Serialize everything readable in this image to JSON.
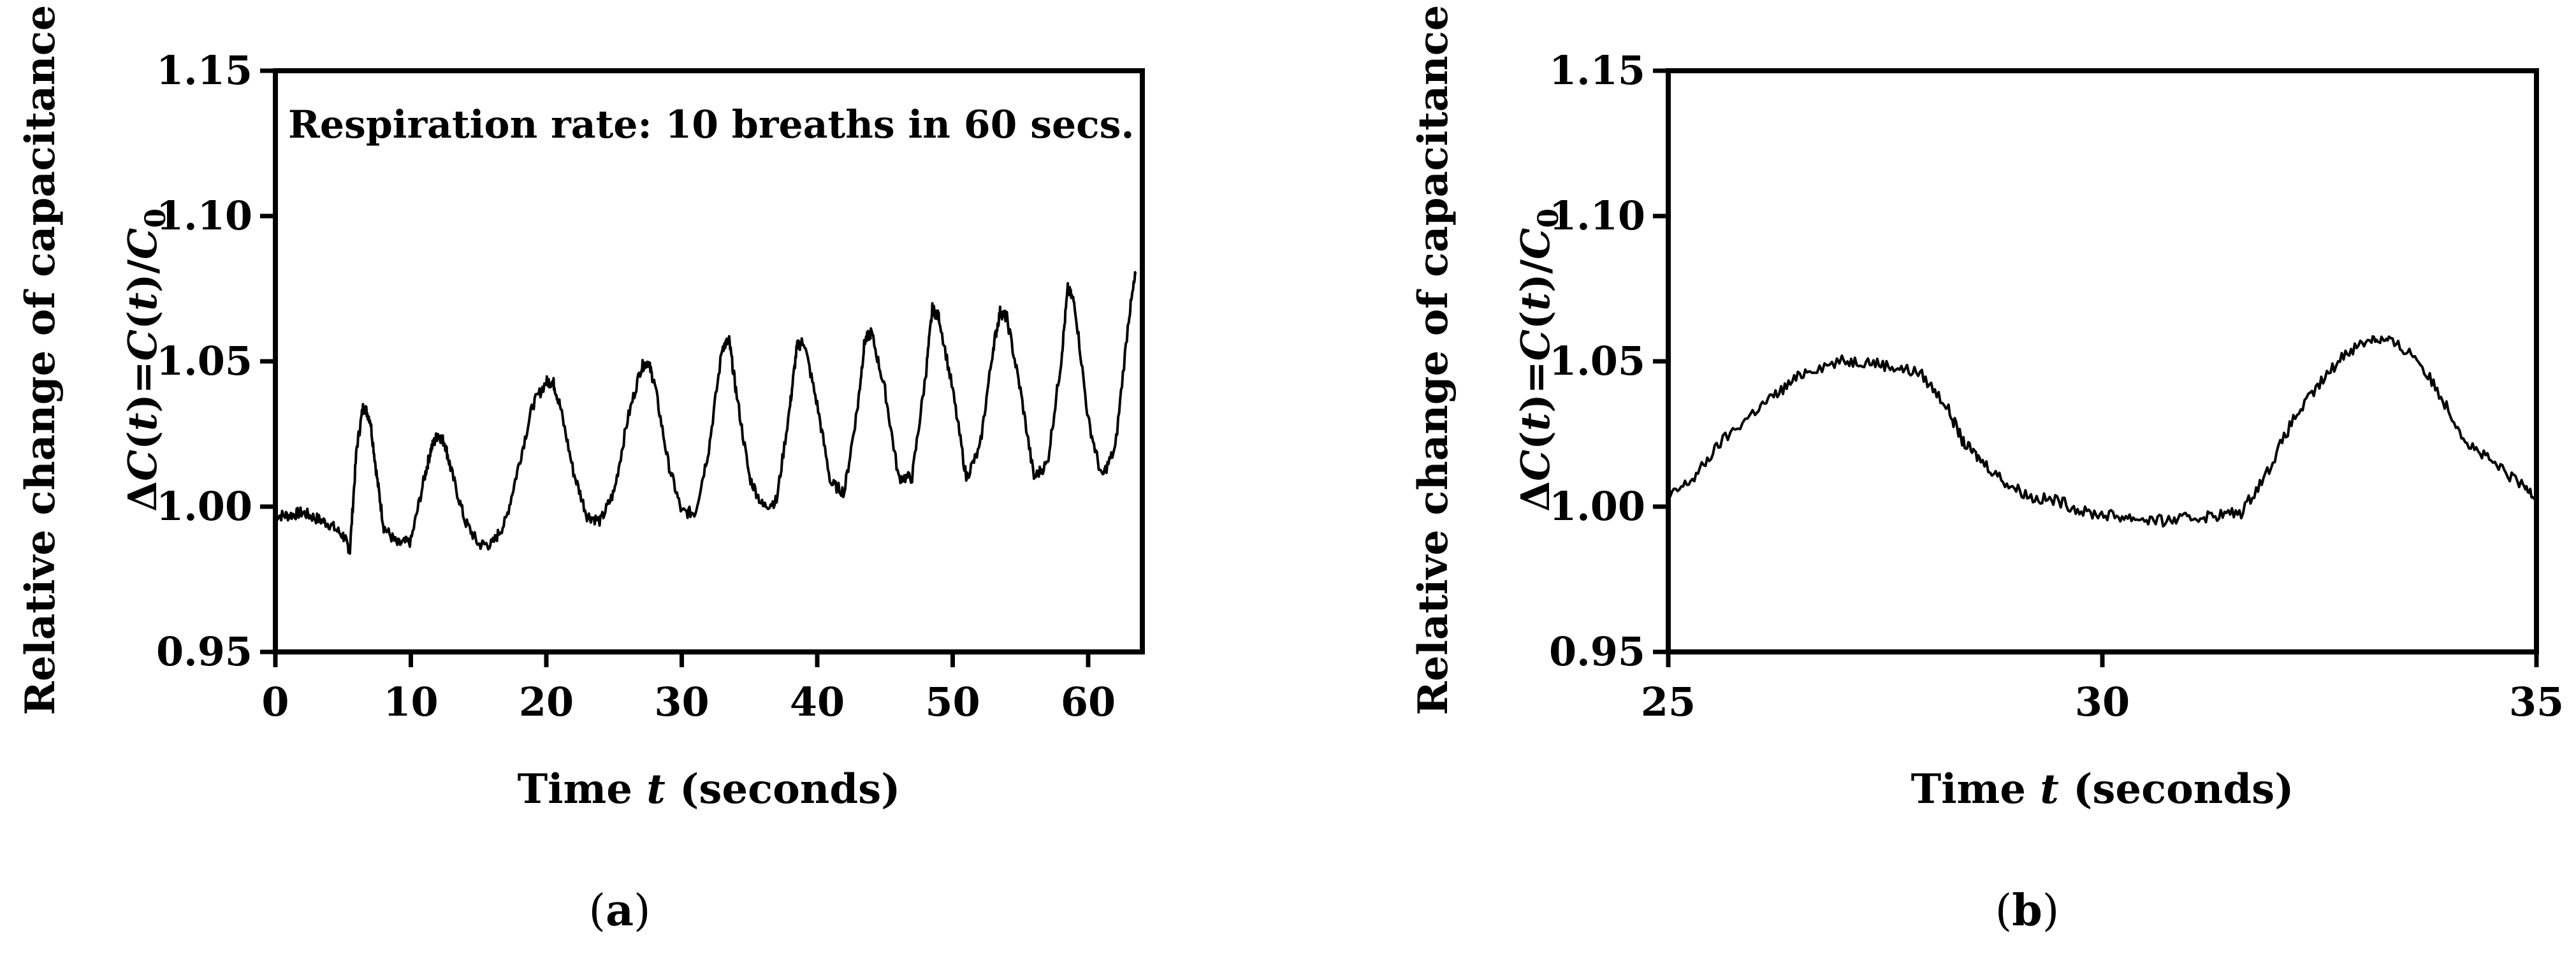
{
  "chart_data": [
    {
      "type": "line",
      "panel_label": "(a)",
      "panel_letter": "a",
      "annotation": "Respiration rate: 10 breaths in 60 secs.",
      "ylabel_line1": "Relative change of capacitance",
      "ylabel_line2": "ΔC(t)=C(t)/C0",
      "xlabel": "Time t (seconds)",
      "xlim": [
        0,
        64
      ],
      "ylim": [
        0.95,
        1.15
      ],
      "xticks": [
        0,
        10,
        20,
        30,
        40,
        50,
        60
      ],
      "yticks": [
        0.95,
        1.0,
        1.05,
        1.1,
        1.15
      ],
      "xtick_labels": [
        "0",
        "10",
        "20",
        "30",
        "40",
        "50",
        "60"
      ],
      "ytick_labels": [
        "0.95",
        "1.00",
        "1.05",
        "1.10",
        "1.15"
      ],
      "grid": false,
      "series": [
        {
          "x": [
            0,
            1,
            2,
            3,
            4,
            5,
            5.5,
            6,
            6.5,
            7,
            7.5,
            8,
            9,
            10,
            11,
            11.5,
            12,
            12.5,
            13,
            14,
            15,
            16,
            17,
            18,
            19,
            20,
            20.5,
            21,
            22,
            23,
            24,
            25,
            26,
            27,
            27.5,
            28,
            29,
            30,
            31,
            32,
            33,
            33.5,
            34,
            35,
            36,
            37,
            38,
            38.5,
            39,
            40,
            41,
            42,
            43,
            43.5,
            44,
            45,
            46,
            47,
            48,
            48.5,
            49,
            50,
            51,
            52,
            53,
            53.5,
            54,
            55,
            56,
            57,
            58,
            58.5,
            59,
            60,
            61,
            62,
            63,
            63.5
          ],
          "y": [
            0.997,
            0.997,
            0.998,
            0.996,
            0.994,
            0.99,
            0.985,
            1.02,
            1.035,
            1.03,
            1.01,
            0.993,
            0.987,
            0.988,
            1.01,
            1.02,
            1.025,
            1.022,
            1.012,
            0.995,
            0.987,
            0.987,
            0.995,
            1.015,
            1.035,
            1.043,
            1.043,
            1.035,
            1.012,
            0.997,
            0.995,
            1.005,
            1.03,
            1.048,
            1.05,
            1.042,
            1.015,
            0.998,
            0.998,
            1.02,
            1.055,
            1.057,
            1.04,
            1.01,
            1.0,
            1.002,
            1.035,
            1.055,
            1.057,
            1.035,
            1.008,
            1.005,
            1.035,
            1.057,
            1.06,
            1.04,
            1.01,
            1.01,
            1.045,
            1.068,
            1.065,
            1.04,
            1.01,
            1.02,
            1.055,
            1.067,
            1.065,
            1.04,
            1.01,
            1.015,
            1.05,
            1.075,
            1.07,
            1.03,
            1.01,
            1.02,
            1.065,
            1.08
          ]
        }
      ]
    },
    {
      "type": "line",
      "panel_label": "(b)",
      "panel_letter": "b",
      "ylabel_line1": "Relative change of capacitance",
      "ylabel_line2": "ΔC(t)=C(t)/C0",
      "xlabel": "Time t (seconds)",
      "xlim": [
        25,
        35
      ],
      "ylim": [
        0.95,
        1.15
      ],
      "xticks": [
        25,
        30,
        35
      ],
      "yticks": [
        0.95,
        1.0,
        1.05,
        1.1,
        1.15
      ],
      "xtick_labels": [
        "25",
        "30",
        "35"
      ],
      "ytick_labels": [
        "0.95",
        "1.00",
        "1.05",
        "1.10",
        "1.15"
      ],
      "grid": false,
      "series": [
        {
          "x": [
            25,
            25.3,
            25.6,
            26,
            26.3,
            26.6,
            27,
            27.3,
            27.6,
            27.9,
            28.2,
            28.4,
            28.6,
            28.9,
            29.2,
            29.5,
            29.8,
            30.1,
            30.4,
            30.7,
            31,
            31.3,
            31.6,
            31.9,
            32.2,
            32.5,
            32.8,
            33.1,
            33.3,
            33.6,
            33.9,
            34.2,
            34.5,
            34.8,
            35
          ],
          "y": [
            1.003,
            1.01,
            1.022,
            1.033,
            1.04,
            1.047,
            1.05,
            1.05,
            1.048,
            1.046,
            1.035,
            1.022,
            1.016,
            1.008,
            1.003,
            1.002,
            0.998,
            0.997,
            0.996,
            0.995,
            0.996,
            0.997,
            0.998,
            1.012,
            1.03,
            1.042,
            1.053,
            1.058,
            1.057,
            1.052,
            1.038,
            1.022,
            1.015,
            1.008,
            1.004
          ]
        }
      ]
    }
  ]
}
